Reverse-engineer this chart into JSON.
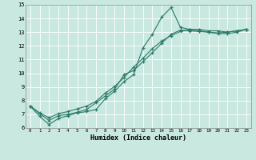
{
  "xlabel": "Humidex (Indice chaleur)",
  "background_color": "#c8e8e0",
  "grid_color": "#ffffff",
  "line_color": "#2d7a6a",
  "xlim": [
    -0.5,
    23.5
  ],
  "ylim": [
    6,
    15
  ],
  "xticks": [
    0,
    1,
    2,
    3,
    4,
    5,
    6,
    7,
    8,
    9,
    10,
    11,
    12,
    13,
    14,
    15,
    16,
    17,
    18,
    19,
    20,
    21,
    22,
    23
  ],
  "yticks": [
    6,
    7,
    8,
    9,
    10,
    11,
    12,
    13,
    14,
    15
  ],
  "series": [
    {
      "x": [
        0,
        1,
        2,
        3,
        4,
        5,
        6,
        7,
        8,
        9,
        10,
        11,
        12,
        13,
        14,
        15,
        16,
        17,
        18,
        19,
        20,
        21,
        22,
        23
      ],
      "y": [
        7.6,
        6.85,
        6.25,
        6.7,
        6.9,
        7.1,
        7.2,
        7.35,
        8.15,
        8.7,
        9.4,
        9.9,
        11.85,
        12.85,
        14.1,
        14.8,
        13.35,
        13.2,
        13.2,
        13.1,
        13.1,
        13.0,
        13.1,
        13.2
      ]
    },
    {
      "x": [
        0,
        1,
        2,
        3,
        4,
        5,
        6,
        7,
        8,
        9,
        10,
        11,
        12,
        13,
        14,
        15,
        16,
        17,
        18,
        19,
        20,
        21,
        22,
        23
      ],
      "y": [
        7.6,
        7.05,
        6.55,
        6.9,
        7.0,
        7.15,
        7.35,
        7.85,
        8.35,
        8.85,
        9.9,
        10.2,
        10.85,
        11.5,
        12.2,
        12.85,
        13.15,
        13.1,
        13.05,
        13.0,
        12.95,
        13.0,
        13.1,
        13.2
      ]
    },
    {
      "x": [
        0,
        1,
        2,
        3,
        4,
        5,
        6,
        7,
        8,
        9,
        10,
        11,
        12,
        13,
        14,
        15,
        16,
        17,
        18,
        19,
        20,
        21,
        22,
        23
      ],
      "y": [
        7.6,
        7.1,
        6.75,
        7.05,
        7.2,
        7.4,
        7.6,
        7.95,
        8.55,
        9.05,
        9.7,
        10.45,
        11.1,
        11.8,
        12.35,
        12.75,
        13.05,
        13.2,
        13.1,
        13.0,
        12.9,
        12.9,
        13.0,
        13.2
      ]
    }
  ]
}
